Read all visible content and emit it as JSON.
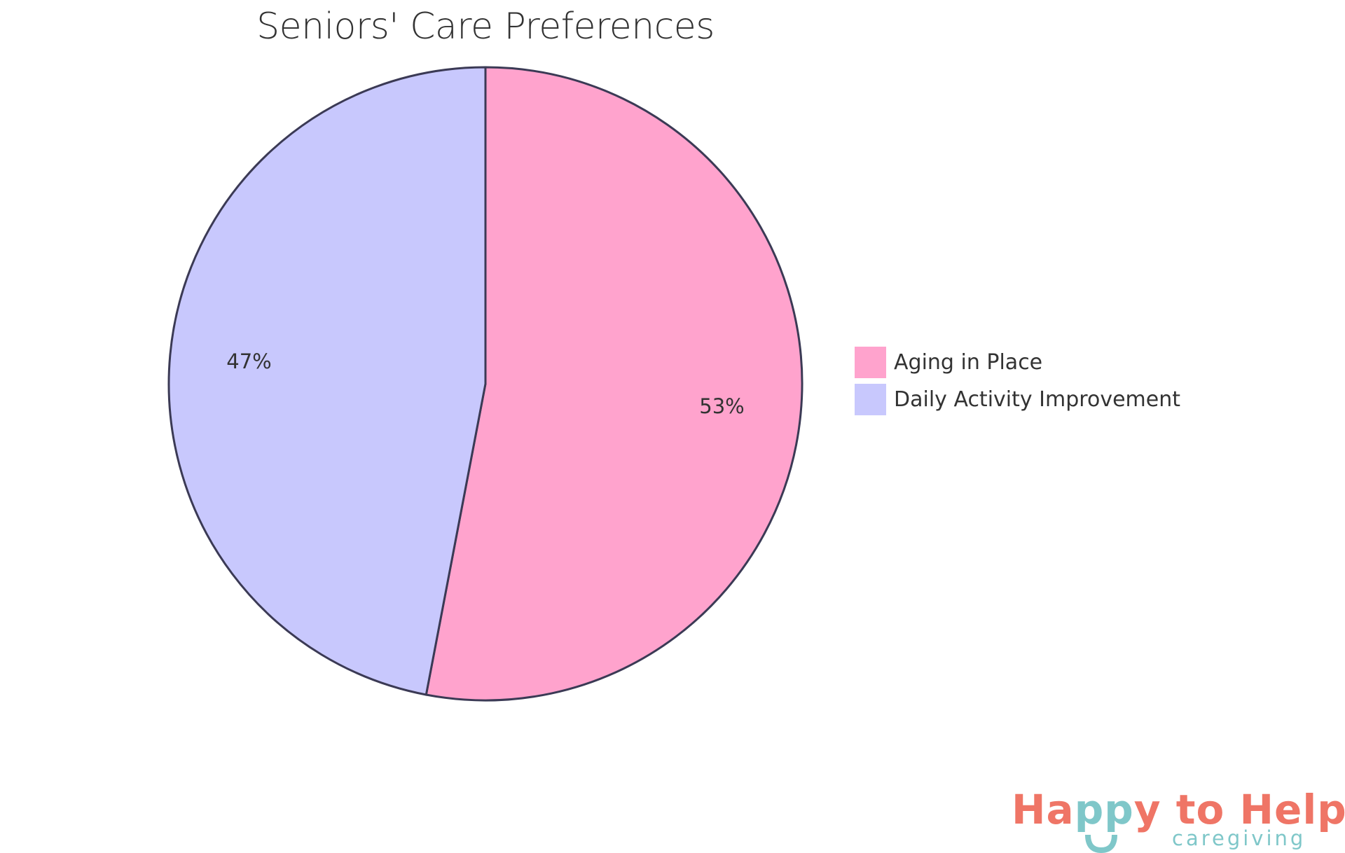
{
  "chart_data": {
    "type": "pie",
    "title": "Seniors' Care Preferences",
    "categories": [
      "Aging in Place",
      "Daily Activity Improvement"
    ],
    "values": [
      53,
      47
    ],
    "labels": [
      "53%",
      "47%"
    ],
    "colors": [
      "#ffa3cd",
      "#c8c8fd"
    ],
    "stroke_color": "#3b3a55",
    "legend_position": "right"
  },
  "title": "Seniors' Care Preferences",
  "legend": [
    {
      "label": "Aging in Place",
      "color": "#ffa3cd"
    },
    {
      "label": "Daily Activity Improvement",
      "color": "#c8c8fd"
    }
  ],
  "slice_labels": [
    "53%",
    "47%"
  ],
  "logo": {
    "part1": "Ha",
    "part2": "pp",
    "part3": "y to Help",
    "subtitle": "caregiving",
    "primary_color": "#ef7566",
    "secondary_color": "#7fc7c9"
  }
}
